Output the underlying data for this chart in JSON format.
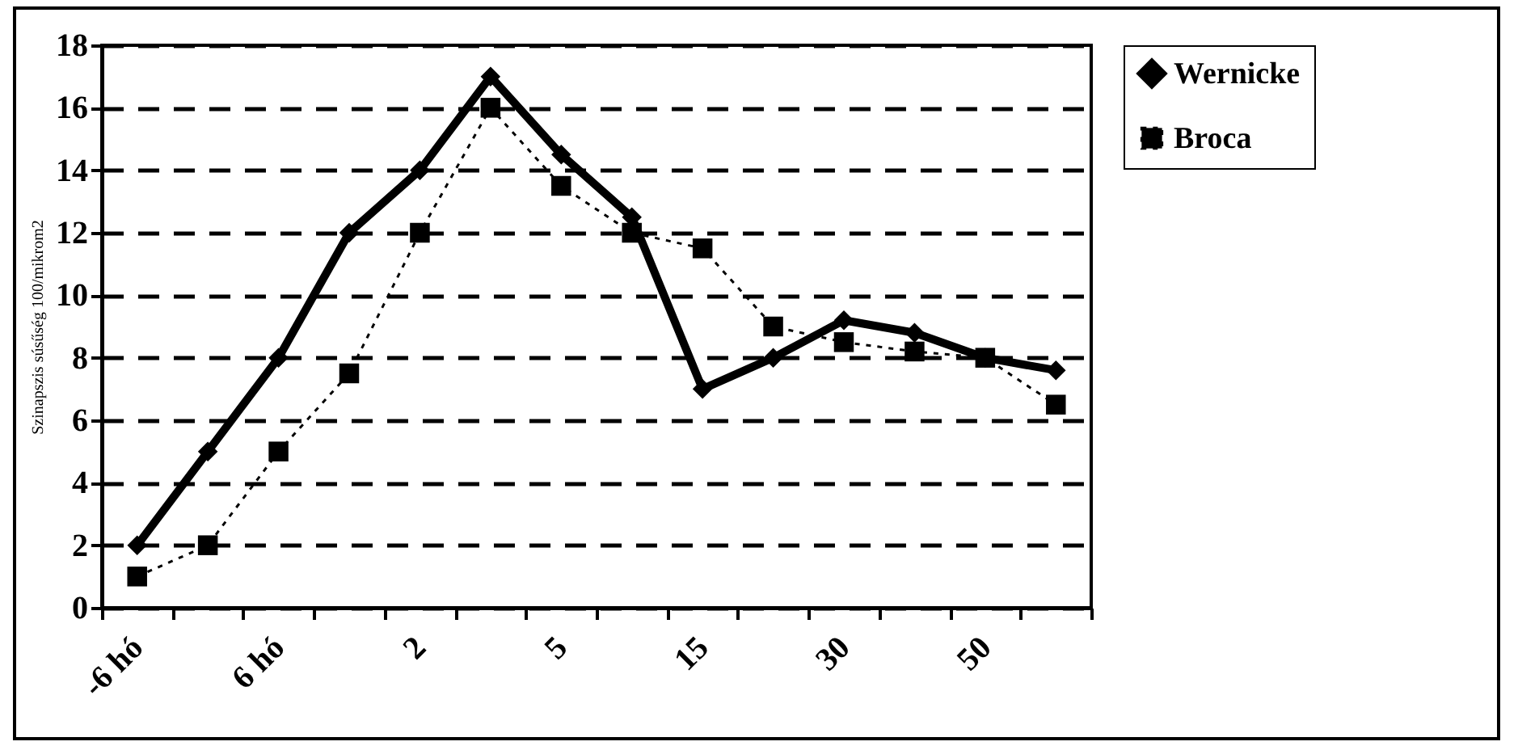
{
  "chart_data": {
    "type": "line",
    "ylabel": "Szinapszis súsűség 100/mikrom2",
    "categories": [
      "-6 hó",
      null,
      "6 hó",
      null,
      "2",
      null,
      "5",
      null,
      "15",
      null,
      "30",
      null,
      "50",
      null
    ],
    "series": [
      {
        "name": "Wernicke",
        "color": "#000000",
        "marker": "diamond",
        "line_style": "solid",
        "values": [
          2,
          5,
          8,
          12,
          14,
          17,
          14.5,
          12.5,
          7,
          8,
          9.2,
          8.8,
          8,
          7.6
        ]
      },
      {
        "name": "Broca",
        "color": "#000000",
        "marker": "square",
        "line_style": "dotted",
        "values": [
          1,
          2,
          5,
          7.5,
          12,
          16,
          13.5,
          12,
          11.5,
          9,
          8.5,
          8.2,
          8,
          6.5
        ]
      }
    ],
    "ylim": [
      0,
      18
    ],
    "yticks": [
      0,
      2,
      4,
      6,
      8,
      10,
      12,
      14,
      16,
      18
    ],
    "grid": "y",
    "legend": "right"
  }
}
